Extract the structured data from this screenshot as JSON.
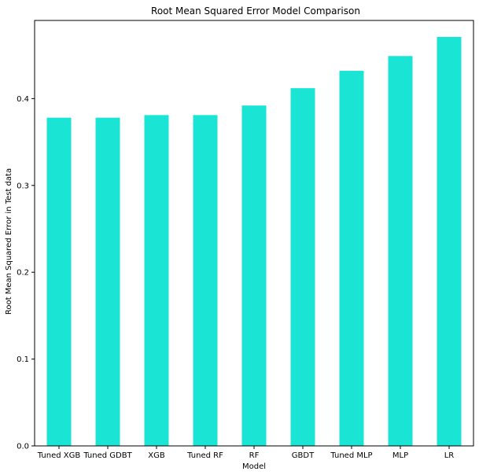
{
  "chart_data": {
    "type": "bar",
    "title": "Root Mean Squared Error Model Comparison",
    "xlabel": "Model",
    "ylabel": "Root Mean Squared Error in Test data",
    "categories": [
      "Tuned XGB",
      "Tuned GDBT",
      "XGB",
      "Tuned RF",
      "RF",
      "GBDT",
      "Tuned MLP",
      "MLP",
      "LR"
    ],
    "values": [
      0.378,
      0.378,
      0.381,
      0.381,
      0.392,
      0.412,
      0.432,
      0.449,
      0.471
    ],
    "ylim": [
      0,
      0.49
    ],
    "yticks": [
      "0.0",
      "0.1",
      "0.2",
      "0.3",
      "0.4"
    ],
    "bar_color": "#1ae5d5",
    "grid": false,
    "legend": "none"
  }
}
